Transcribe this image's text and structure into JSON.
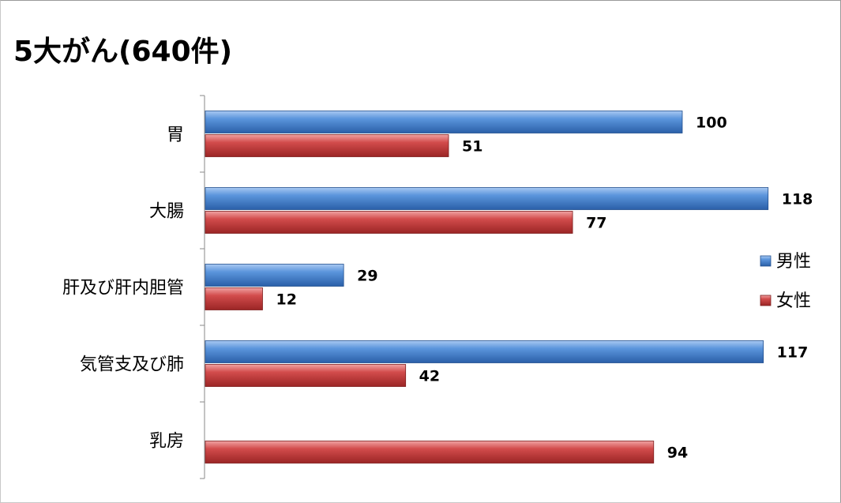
{
  "chart_data": {
    "type": "bar",
    "orientation": "horizontal",
    "title": "5大がん(640件)",
    "categories": [
      "胃",
      "大腸",
      "肝及び肝内胆管",
      "気管支及び肺",
      "乳房"
    ],
    "series": [
      {
        "name": "男性",
        "color": "#3f7fd0",
        "values": [
          100,
          118,
          29,
          117,
          null
        ]
      },
      {
        "name": "女性",
        "color": "#c83a3a",
        "values": [
          51,
          77,
          12,
          42,
          94
        ]
      }
    ],
    "xlim": [
      0,
      125
    ],
    "grid": false,
    "legend_position": "right",
    "data_labels": true
  }
}
